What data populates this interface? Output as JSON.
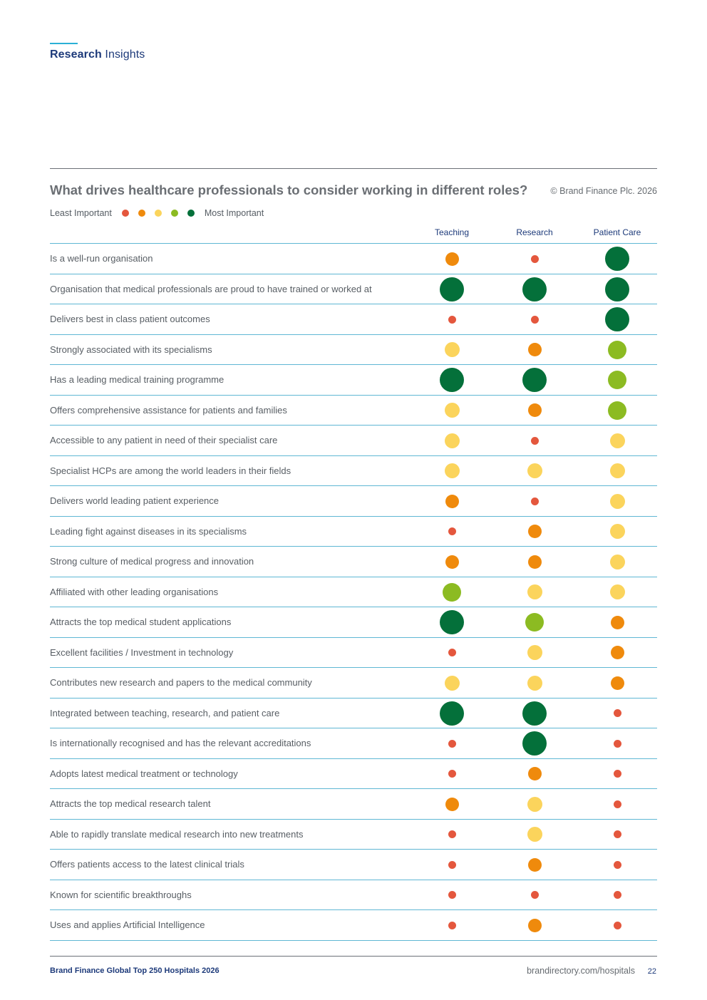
{
  "header": {
    "section_bold": "Research",
    "section_rest": " Insights"
  },
  "chart_data": {
    "type": "table",
    "title": "What drives healthcare professionals to consider working in different roles?",
    "copyright": "© Brand Finance Plc. 2026",
    "legend": {
      "least_label": "Least Important",
      "most_label": "Most Important",
      "levels": [
        1,
        2,
        3,
        4,
        5
      ]
    },
    "columns": [
      "Teaching",
      "Research",
      "Patient Care"
    ],
    "rows": [
      {
        "label": "Is a well-run organisation",
        "importance": [
          2,
          1,
          5
        ]
      },
      {
        "label": "Organisation that medical professionals are proud to have trained or worked at",
        "importance": [
          5,
          5,
          5
        ]
      },
      {
        "label": "Delivers best in class patient outcomes",
        "importance": [
          1,
          1,
          5
        ]
      },
      {
        "label": "Strongly associated with its specialisms",
        "importance": [
          3,
          2,
          4
        ]
      },
      {
        "label": "Has a leading medical training programme",
        "importance": [
          5,
          5,
          4
        ]
      },
      {
        "label": "Offers comprehensive assistance for patients and families",
        "importance": [
          3,
          2,
          4
        ]
      },
      {
        "label": "Accessible to any patient in need of their specialist care",
        "importance": [
          3,
          1,
          3
        ]
      },
      {
        "label": "Specialist HCPs are among the world leaders in their fields",
        "importance": [
          3,
          3,
          3
        ]
      },
      {
        "label": "Delivers world leading patient experience",
        "importance": [
          2,
          1,
          3
        ]
      },
      {
        "label": "Leading fight against diseases in its specialisms",
        "importance": [
          1,
          2,
          3
        ]
      },
      {
        "label": "Strong culture of medical progress and innovation",
        "importance": [
          2,
          2,
          3
        ]
      },
      {
        "label": "Affiliated with other leading organisations",
        "importance": [
          4,
          3,
          3
        ]
      },
      {
        "label": "Attracts the top medical student applications",
        "importance": [
          5,
          4,
          2
        ]
      },
      {
        "label": "Excellent facilities / Investment in technology",
        "importance": [
          1,
          3,
          2
        ]
      },
      {
        "label": "Contributes new research and papers to the medical community",
        "importance": [
          3,
          3,
          2
        ]
      },
      {
        "label": "Integrated between teaching, research, and patient care",
        "importance": [
          5,
          5,
          1
        ]
      },
      {
        "label": "Is internationally recognised and has the relevant accreditations",
        "importance": [
          1,
          5,
          1
        ]
      },
      {
        "label": "Adopts latest medical treatment or technology",
        "importance": [
          1,
          2,
          1
        ]
      },
      {
        "label": "Attracts the top medical research talent",
        "importance": [
          2,
          3,
          1
        ]
      },
      {
        "label": "Able to rapidly translate medical research into new treatments",
        "importance": [
          1,
          3,
          1
        ]
      },
      {
        "label": "Offers patients access to the latest clinical trials",
        "importance": [
          1,
          2,
          1
        ]
      },
      {
        "label": "Known for scientific breakthroughs",
        "importance": [
          1,
          1,
          1
        ]
      },
      {
        "label": "Uses and applies Artificial Intelligence",
        "importance": [
          1,
          2,
          1
        ]
      }
    ]
  },
  "colors": {
    "level_1": "#e4573d",
    "level_2": "#ef8a0c",
    "level_3": "#fbd45c",
    "level_4": "#8cbb22",
    "level_5": "#04703a"
  },
  "footer": {
    "left": "Brand Finance Global Top 250 Hospitals 2026",
    "url": "brandirectory.com/hospitals",
    "page": "22"
  }
}
